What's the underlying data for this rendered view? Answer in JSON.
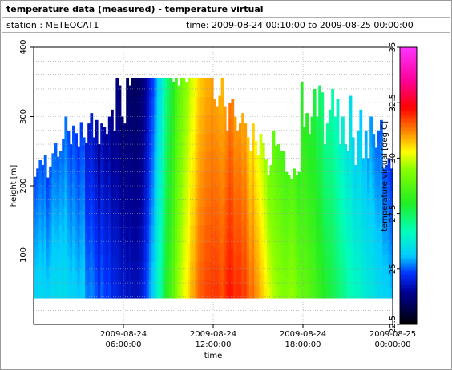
{
  "header": {
    "title": "temperature data (measured) - temperature virtual",
    "station": "station : METEOCAT1",
    "time_range": "time: 2009-08-24 00:10:00 to 2009-08-25 00:00:00"
  },
  "chart_data": {
    "type": "heatmap",
    "title": "temperature data (measured) - temperature virtual",
    "xlabel": "time",
    "ylabel": "height [m]",
    "colorbar_label": "temperature virtual [deg C]",
    "xlim_hours": [
      0,
      24
    ],
    "ylim": [
      0,
      400
    ],
    "x_ticks": [
      {
        "hours": 6,
        "line1": "2009-08-24",
        "line2": "06:00:00"
      },
      {
        "hours": 12,
        "line1": "2009-08-24",
        "line2": "12:00:00"
      },
      {
        "hours": 18,
        "line1": "2009-08-24",
        "line2": "18:00:00"
      },
      {
        "hours": 24,
        "line1": "2009-08-25",
        "line2": "00:00:00"
      }
    ],
    "y_ticks": [
      100,
      200,
      300,
      400
    ],
    "y_tick_labels": [
      "100",
      "200",
      "300",
      "400"
    ],
    "colorbar": {
      "range": [
        22.5,
        35
      ],
      "ticks": [
        22.5,
        25,
        27.5,
        30,
        32.5,
        35
      ],
      "tick_labels": [
        "22.5",
        "25",
        "27.5",
        "30",
        "32.5",
        "35"
      ]
    },
    "data_bottom_height": 38,
    "grid": true,
    "colormap": [
      {
        "v": 22.5,
        "c": "#000000"
      },
      {
        "v": 24.0,
        "c": "#000099"
      },
      {
        "v": 24.8,
        "c": "#0033ff"
      },
      {
        "v": 25.6,
        "c": "#00ccff"
      },
      {
        "v": 26.7,
        "c": "#00ffbb"
      },
      {
        "v": 28.0,
        "c": "#22ee22"
      },
      {
        "v": 29.5,
        "c": "#88ff00"
      },
      {
        "v": 30.3,
        "c": "#ffff00"
      },
      {
        "v": 31.2,
        "c": "#ff8800"
      },
      {
        "v": 32.3,
        "c": "#ff0000"
      },
      {
        "v": 33.5,
        "c": "#ff0099"
      },
      {
        "v": 35.0,
        "c": "#ff33ff"
      }
    ],
    "columns_top_height": [
      213,
      225,
      237,
      230,
      245,
      212,
      228,
      247,
      262,
      242,
      250,
      268,
      300,
      279,
      260,
      287,
      276,
      257,
      292,
      270,
      262,
      290,
      305,
      270,
      295,
      260,
      290,
      285,
      275,
      300,
      310,
      280,
      355,
      345,
      300,
      290,
      355,
      345,
      355,
      355,
      355,
      355,
      355,
      355,
      355,
      355,
      355,
      355,
      355,
      355,
      355,
      355,
      355,
      355,
      350,
      355,
      345,
      355,
      355,
      350,
      355,
      355,
      355,
      355,
      355,
      355,
      355,
      355,
      355,
      355,
      325,
      315,
      330,
      355,
      315,
      280,
      320,
      325,
      300,
      280,
      290,
      305,
      290,
      270,
      250,
      290,
      265,
      245,
      275,
      262,
      238,
      215,
      230,
      280,
      258,
      260,
      250,
      250,
      220,
      215,
      210,
      225,
      215,
      220,
      350,
      285,
      305,
      275,
      300,
      340,
      300,
      345,
      335,
      260,
      290,
      310,
      340,
      300,
      325,
      260,
      300,
      260,
      250,
      330,
      270,
      230,
      280,
      310,
      240,
      280,
      240,
      300,
      275,
      255,
      280,
      295,
      225,
      230,
      240,
      225
    ],
    "columns_surface_temp": [
      25.8,
      25.8,
      25.9,
      25.8,
      25.9,
      25.7,
      25.8,
      26.0,
      25.9,
      25.9,
      26.0,
      25.9,
      26.0,
      25.8,
      25.7,
      25.8,
      25.7,
      25.6,
      25.7,
      25.8,
      25.3,
      25.2,
      25.3,
      25.2,
      25.0,
      24.8,
      25.1,
      24.9,
      24.8,
      24.9,
      24.6,
      24.7,
      24.6,
      24.5,
      24.4,
      24.5,
      24.3,
      24.4,
      24.3,
      24.3,
      24.3,
      24.4,
      24.5,
      24.8,
      25.1,
      25.4,
      25.7,
      26.1,
      26.6,
      26.9,
      27.4,
      27.9,
      28.3,
      28.6,
      28.9,
      29.3,
      29.7,
      29.9,
      30.2,
      30.4,
      30.6,
      30.9,
      31.0,
      31.3,
      31.5,
      31.6,
      31.7,
      31.8,
      31.8,
      31.9,
      31.9,
      31.9,
      31.8,
      31.7,
      31.9,
      32.1,
      32.2,
      32.1,
      31.9,
      32.0,
      32.0,
      31.8,
      31.9,
      31.6,
      31.4,
      31.5,
      31.2,
      31.1,
      30.8,
      30.7,
      30.5,
      30.2,
      30.0,
      29.8,
      29.7,
      29.6,
      29.5,
      29.4,
      29.4,
      29.5,
      29.6,
      29.5,
      29.3,
      29.1,
      28.9,
      29.0,
      28.9,
      28.8,
      28.7,
      28.6,
      28.4,
      28.3,
      28.1,
      28.0,
      27.9,
      27.8,
      27.7,
      27.6,
      27.4,
      27.3,
      27.2,
      27.1,
      26.9,
      26.8,
      26.7,
      26.6,
      26.6,
      26.5,
      26.4,
      26.3,
      26.2,
      26.2,
      26.1,
      26.0,
      25.9,
      25.9,
      25.8,
      25.8,
      25.7,
      25.6
    ]
  }
}
